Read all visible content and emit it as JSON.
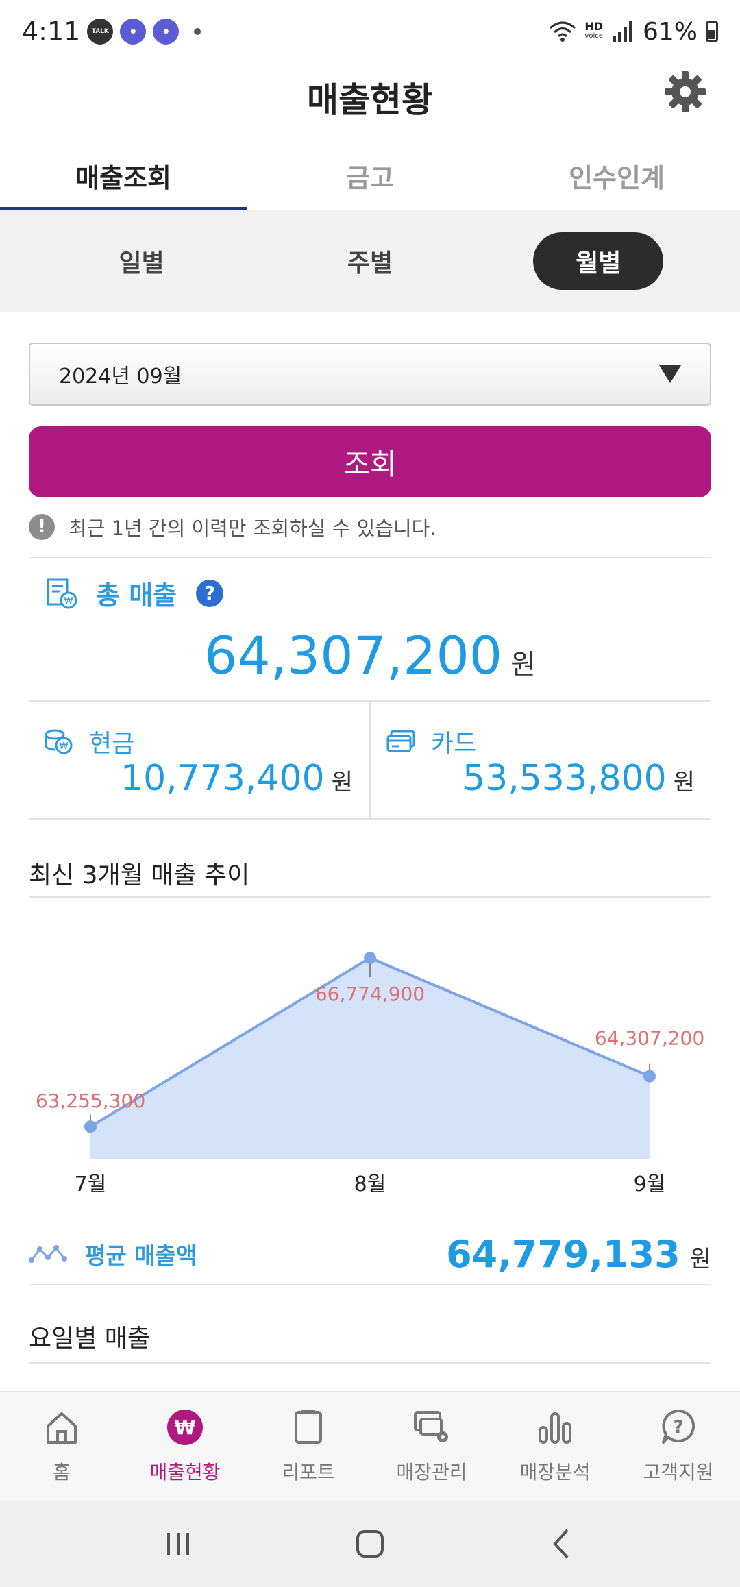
{
  "status_bar": {
    "time": "4:11",
    "talk_badge": "TALK",
    "hd_label": "HD",
    "hd_sub": "voice",
    "battery": "61%"
  },
  "header": {
    "title": "매출현황",
    "settings_icon": "gear-icon"
  },
  "tabs": [
    {
      "label": "매출조회",
      "active": true
    },
    {
      "label": "금고",
      "active": false
    },
    {
      "label": "인수인계",
      "active": false
    }
  ],
  "period": [
    {
      "label": "일별",
      "active": false
    },
    {
      "label": "주별",
      "active": false
    },
    {
      "label": "월별",
      "active": true
    }
  ],
  "month_select": {
    "value": "2024년 09월"
  },
  "query_button": "조회",
  "notice": {
    "icon_text": "!",
    "text": "최근 1년 간의 이력만 조회하실 수 있습니다."
  },
  "total": {
    "label": "총 매출",
    "help": "?",
    "value": "64,307,200",
    "unit": "원"
  },
  "cash": {
    "label": "현금",
    "value": "10,773,400",
    "unit": "원"
  },
  "card": {
    "label": "카드",
    "value": "53,533,800",
    "unit": "원"
  },
  "trend_title": "최신 3개월 매출 추이",
  "chart_data": {
    "type": "area",
    "categories": [
      "7월",
      "8월",
      "9월"
    ],
    "values": [
      63255300,
      66774900,
      64307200
    ],
    "value_labels": [
      "63,255,300",
      "66,774,900",
      "64,307,200"
    ],
    "ylim": [
      62600000,
      66774900
    ],
    "colors": {
      "line": "#7ea3e6",
      "fill": "#d4e3f9",
      "label": "#e06f6f"
    }
  },
  "average": {
    "label": "평균 매출액",
    "value": "64,779,133",
    "unit": "원"
  },
  "weekday_title": "요일별 매출",
  "bottom_nav": [
    {
      "label": "홈",
      "icon": "home-icon",
      "active": false
    },
    {
      "label": "매출현황",
      "icon": "won-icon",
      "active": true
    },
    {
      "label": "리포트",
      "icon": "report-icon",
      "active": false
    },
    {
      "label": "매장관리",
      "icon": "store-manage-icon",
      "active": false
    },
    {
      "label": "매장분석",
      "icon": "analysis-icon",
      "active": false
    },
    {
      "label": "고객지원",
      "icon": "support-icon",
      "active": false
    }
  ],
  "accent_color": "#b01a80",
  "value_color": "#1f9be3"
}
